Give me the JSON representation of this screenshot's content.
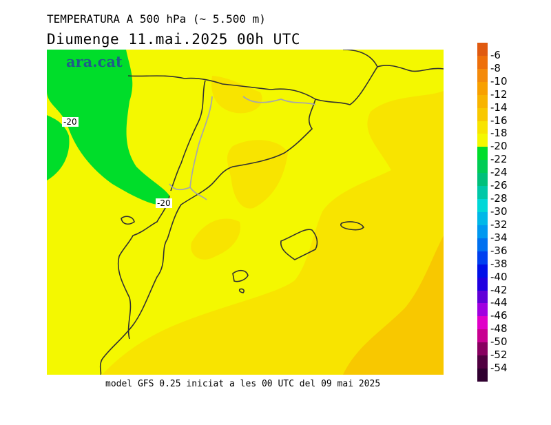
{
  "header": {
    "title": "TEMPERATURA A 500 hPa (~ 5.500 m)",
    "subtitle": "Diumenge  11.mai.2025 00h UTC"
  },
  "footer": {
    "text": "model GFS 0.25 iniciat a les 00 UTC del 09 mai 2025"
  },
  "map": {
    "logo": "ara.cat",
    "contour_labels": [
      "-20",
      "-20"
    ],
    "field_colors": {
      "minus_22": "#00dd2a",
      "minus_20": "#f4f800",
      "minus_18": "#f8e400",
      "minus_16": "#f8c800"
    }
  },
  "legend": {
    "ticks": [
      "-6",
      "-8",
      "-10",
      "-12",
      "-14",
      "-16",
      "-18",
      "-20",
      "-22",
      "-24",
      "-26",
      "-28",
      "-30",
      "-32",
      "-34",
      "-36",
      "-38",
      "-40",
      "-42",
      "-44",
      "-46",
      "-48",
      "-50",
      "-52",
      "-54"
    ],
    "colors": [
      "#e05a10",
      "#ee6f0a",
      "#f48a0a",
      "#f8a000",
      "#f8b400",
      "#f8c800",
      "#f8e400",
      "#f4f800",
      "#00dd2a",
      "#00cc55",
      "#00c07a",
      "#00c8a8",
      "#00d8d8",
      "#00b8e8",
      "#0098f0",
      "#0070f0",
      "#0040f0",
      "#0010e8",
      "#2000e0",
      "#6000d8",
      "#a000e0",
      "#e000c8",
      "#c80090",
      "#880060",
      "#500040",
      "#300030"
    ]
  }
}
